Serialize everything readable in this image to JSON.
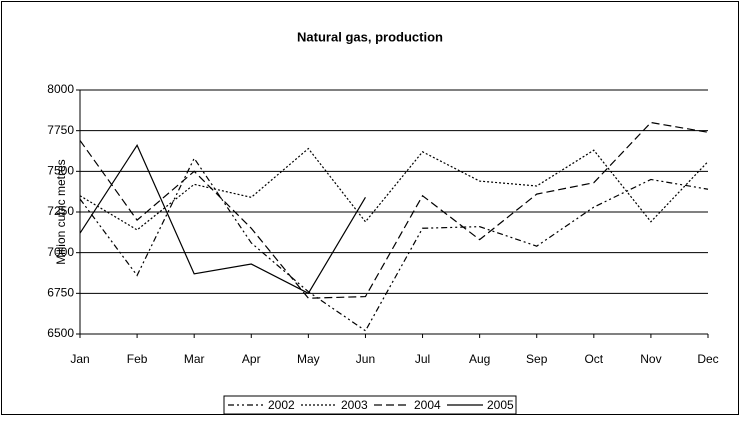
{
  "chart_data": {
    "type": "line",
    "title": "Natural gas, production",
    "y_label": "Million cubic metres",
    "categories": [
      "Jan",
      "Feb",
      "Mar",
      "Apr",
      "May",
      "Jun",
      "Jul",
      "Aug",
      "Sep",
      "Oct",
      "Nov",
      "Dec"
    ],
    "series": [
      {
        "name": "2002",
        "color": "#000000",
        "dash": "6,3,2,3,2,3",
        "values": [
          7330,
          6860,
          7580,
          7060,
          6760,
          6520,
          7150,
          7160,
          7040,
          7280,
          7450,
          7390
        ]
      },
      {
        "name": "2003",
        "color": "#000000",
        "dash": "2,2",
        "values": [
          7350,
          7140,
          7420,
          7340,
          7640,
          7190,
          7620,
          7440,
          7410,
          7630,
          7190,
          7560
        ]
      },
      {
        "name": "2004",
        "color": "#000000",
        "dash": "8,4",
        "values": [
          7690,
          7200,
          7500,
          7150,
          6720,
          6730,
          7350,
          7080,
          7360,
          7430,
          7800,
          7740
        ]
      },
      {
        "name": "2005",
        "color": "#000000",
        "dash": "none",
        "values": [
          7120,
          7660,
          6870,
          6930,
          6750,
          7340,
          null,
          null,
          null,
          null,
          null,
          null
        ]
      }
    ],
    "ylim": [
      6500,
      8000
    ],
    "yticks": [
      6500,
      6750,
      7000,
      7250,
      7500,
      7750,
      8000
    ],
    "grid": true,
    "legend": "bottom"
  }
}
